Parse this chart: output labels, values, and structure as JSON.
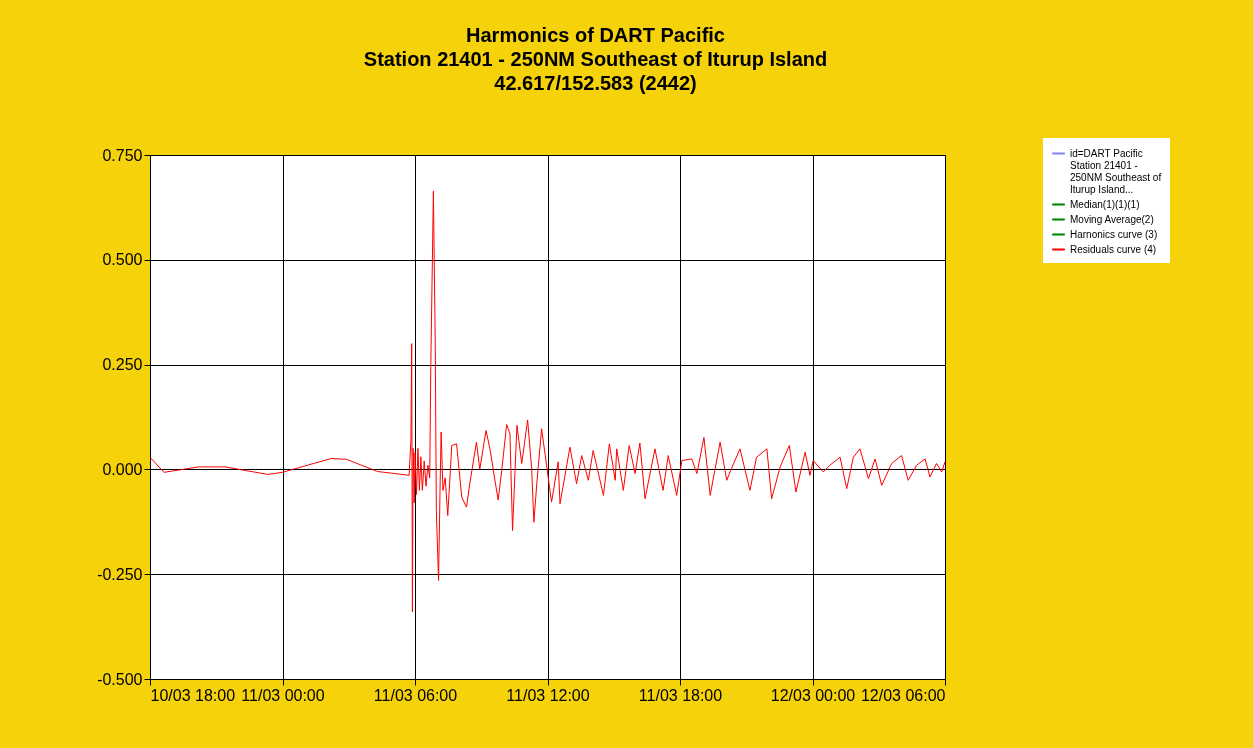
{
  "chart_data": {
    "type": "line",
    "title": "Harmonics of DART Pacific\nStation 21401 - 250NM Southeast of Iturup Island\n42.617/152.583 (2442)",
    "xlim": [
      "--03-10T18:00",
      "--03-12T06:00"
    ],
    "xticks": [
      {
        "value": "--03-10T18:00",
        "label": "10/03 18:00"
      },
      {
        "value": "--03-11T00:00",
        "label": "11/03 00:00"
      },
      {
        "value": "--03-11T06:00",
        "label": "11/03 06:00"
      },
      {
        "value": "--03-11T12:00",
        "label": "11/03 12:00"
      },
      {
        "value": "--03-11T18:00",
        "label": "11/03 18:00"
      },
      {
        "value": "--03-12T00:00",
        "label": "12/03 00:00"
      },
      {
        "value": "--03-12T06:00",
        "label": "12/03 06:00"
      }
    ],
    "ylim": [
      -0.5,
      0.75
    ],
    "yticks": [
      {
        "value": 0.75,
        "label": "0.750"
      },
      {
        "value": 0.5,
        "label": "0.500"
      },
      {
        "value": 0.25,
        "label": "0.250"
      },
      {
        "value": 0,
        "label": "0.000"
      },
      {
        "value": -0.25,
        "label": "-0.250"
      },
      {
        "value": -0.5,
        "label": "-0.500"
      }
    ],
    "grid": true,
    "legend": "top right",
    "ref_lines": [
      {
        "axis": "y",
        "value": 0,
        "color": "#000000",
        "line_style": "dotted"
      }
    ],
    "series": [
      {
        "name": "id=DART Pacific Station 21401 - 250NM Southeast of Iturup Island...",
        "color": "#8080ff"
      },
      {
        "name": "Median(1)(1)(1)",
        "color": "#008000"
      },
      {
        "name": "Moving Average(2)",
        "color": "#008000"
      },
      {
        "name": "Harnonics curve (3)",
        "color": "#008000"
      },
      {
        "name": "Residuals curve (4)",
        "color": "#ff0000",
        "x": [
          "--03-10T18:00",
          "--03-10T18:38",
          "--03-10T20:12",
          "--03-10T21:24",
          "--03-10T23:20",
          "--03-11T00:00",
          "--03-11T02:12",
          "--03-11T02:54",
          "--03-11T04:18",
          "--03-11T05:44",
          "--03-11T05:49",
          "--03-11T05:51",
          "--03-11T05:53",
          "--03-11T05:55",
          "--03-11T05:58",
          "--03-11T06:00",
          "--03-11T06:04",
          "--03-11T06:08",
          "--03-11T06:12",
          "--03-11T06:16",
          "--03-11T06:20",
          "--03-11T06:25",
          "--03-11T06:30",
          "--03-11T06:35",
          "--03-11T06:40",
          "--03-11T06:43",
          "--03-11T06:50",
          "--03-11T06:55",
          "--03-11T06:58",
          "--03-11T07:04",
          "--03-11T07:08",
          "--03-11T07:11",
          "--03-11T07:16",
          "--03-11T07:22",
          "--03-11T07:29",
          "--03-11T07:40",
          "--03-11T07:53",
          "--03-11T08:07",
          "--03-11T08:20",
          "--03-11T08:29",
          "--03-11T08:47",
          "--03-11T08:56",
          "--03-11T09:13",
          "--03-11T09:24",
          "--03-11T09:37",
          "--03-11T09:46",
          "--03-11T09:56",
          "--03-11T10:09",
          "--03-11T10:18",
          "--03-11T10:25",
          "--03-11T10:37",
          "--03-11T10:50",
          "--03-11T11:06",
          "--03-11T11:17",
          "--03-11T11:23",
          "--03-11T11:31",
          "--03-11T11:44",
          "--03-11T12:11",
          "--03-11T12:29",
          "--03-11T12:34",
          "--03-11T13:01",
          "--03-11T13:19",
          "--03-11T13:33",
          "--03-11T13:51",
          "--03-11T14:04",
          "--03-11T14:32",
          "--03-11T14:48",
          "--03-11T15:04",
          "--03-11T15:08",
          "--03-11T15:26",
          "--03-11T15:42",
          "--03-11T15:58",
          "--03-11T16:11",
          "--03-11T16:25",
          "--03-11T16:52",
          "--03-11T17:14",
          "--03-11T17:28",
          "--03-11T17:51",
          "--03-11T18:05",
          "--03-11T18:32",
          "--03-11T18:46",
          "--03-11T19:05",
          "--03-11T19:22",
          "--03-11T19:49",
          "--03-11T20:07",
          "--03-11T20:20",
          "--03-11T20:43",
          "--03-11T21:10",
          "--03-11T21:28",
          "--03-11T21:56",
          "--03-11T22:09",
          "--03-11T22:32",
          "--03-11T22:57",
          "--03-11T23:15",
          "--03-11T23:40",
          "--03-11T23:53",
          "--03-12T00:02",
          "--03-12T00:29",
          "--03-12T00:47",
          "--03-12T01:15",
          "--03-12T01:33",
          "--03-12T01:51",
          "--03-12T02:09",
          "--03-12T02:32",
          "--03-12T02:50",
          "--03-12T03:08",
          "--03-12T03:35",
          "--03-12T04:02",
          "--03-12T04:20",
          "--03-12T04:43",
          "--03-12T05:06",
          "--03-12T05:19",
          "--03-12T05:37",
          "--03-12T05:51",
          "--03-12T06:00"
        ],
        "values": [
          0.029,
          -0.007,
          0.006,
          0.006,
          -0.012,
          -0.007,
          0.026,
          0.024,
          -0.005,
          -0.014,
          0.07,
          0.3,
          -0.34,
          0.05,
          -0.08,
          0.04,
          -0.06,
          0.05,
          -0.05,
          0.03,
          -0.05,
          0.02,
          -0.04,
          0.01,
          -0.02,
          0.25,
          0.664,
          0.3,
          -0.1,
          -0.265,
          -0.05,
          0.089,
          -0.05,
          -0.02,
          -0.11,
          0.057,
          0.061,
          -0.066,
          -0.09,
          -0.033,
          0.065,
          0.0,
          0.093,
          0.047,
          -0.025,
          -0.073,
          0.0,
          0.107,
          0.085,
          -0.146,
          0.105,
          0.014,
          0.118,
          0.0,
          -0.126,
          -0.033,
          0.097,
          -0.078,
          0.018,
          -0.082,
          0.053,
          -0.034,
          0.033,
          -0.026,
          0.045,
          -0.062,
          0.061,
          -0.026,
          0.049,
          -0.05,
          0.057,
          -0.01,
          0.063,
          -0.07,
          0.049,
          -0.05,
          0.033,
          -0.062,
          0.021,
          0.025,
          -0.01,
          0.076,
          -0.062,
          0.065,
          -0.026,
          0.002,
          0.049,
          -0.05,
          0.029,
          0.049,
          -0.07,
          0.006,
          0.057,
          -0.054,
          0.041,
          -0.014,
          0.021,
          -0.006,
          0.01,
          0.029,
          -0.046,
          0.029,
          0.049,
          -0.022,
          0.025,
          -0.038,
          0.014,
          0.033,
          -0.026,
          0.01,
          0.025,
          -0.018,
          0.014,
          -0.006,
          0.018
        ]
      }
    ]
  }
}
